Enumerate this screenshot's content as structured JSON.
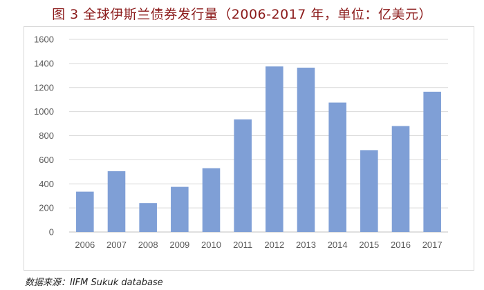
{
  "title": "图 3  全球伊斯兰债券发行量（2006-2017 年，单位：亿美元）",
  "source": "数据来源：IIFM Sukuk database",
  "colors": {
    "bar": "#7f9fd6",
    "grid": "#d9d9d9",
    "axis": "#bfbfbf",
    "title": "#8b1a1a"
  },
  "chart_data": {
    "type": "bar",
    "title": "图 3  全球伊斯兰债券发行量（2006-2017 年，单位：亿美元）",
    "categories": [
      "2006",
      "2007",
      "2008",
      "2009",
      "2010",
      "2011",
      "2012",
      "2013",
      "2014",
      "2015",
      "2016",
      "2017"
    ],
    "values": [
      335,
      505,
      240,
      375,
      530,
      935,
      1375,
      1365,
      1075,
      680,
      880,
      1165
    ],
    "ylim": [
      0,
      1600
    ],
    "yticks": [
      0,
      200,
      400,
      600,
      800,
      1000,
      1200,
      1400,
      1600
    ],
    "grid": true,
    "xlabel": "",
    "ylabel": ""
  }
}
